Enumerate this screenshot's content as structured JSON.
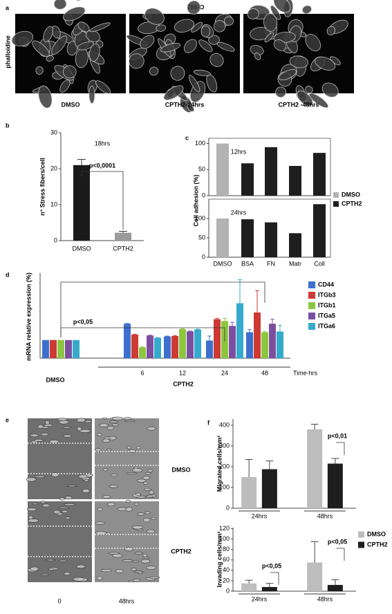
{
  "panel_a": {
    "letter": "a",
    "title": "786-O",
    "stain": "phalloidine",
    "images": [
      "DMSO",
      "CPTH2-24hrs",
      "CPTH2 -48hrs"
    ]
  },
  "panel_e": {
    "letter": "e",
    "rows": [
      "DMSO",
      "CPTH2"
    ],
    "columns": [
      "0",
      "48hrs"
    ]
  },
  "chart_data": [
    {
      "panel": "b",
      "type": "bar",
      "title": "18hrs",
      "ylabel": "n° Stress fibers/cell",
      "categories": [
        "DMSO",
        "CPTH2"
      ],
      "values": [
        21,
        2.2
      ],
      "errors": [
        1.6,
        0.4
      ],
      "colors": [
        "#1a1a1a",
        "#9a9a9a"
      ],
      "ylim": [
        0,
        30
      ],
      "yticks": [
        0,
        10,
        20,
        30
      ],
      "annotation": "p<0,0001"
    },
    {
      "panel": "c",
      "type": "bar",
      "ylabel": "Cell adhesion (%)",
      "categories": [
        "DMSO",
        "BSA",
        "FN",
        "Matr",
        "Coll"
      ],
      "series": [
        {
          "name": "DMSO",
          "color": "#b3b3b3"
        },
        {
          "name": "CPTH2",
          "color": "#1e1e1e"
        }
      ],
      "panels": [
        {
          "title": "12hrs",
          "ylim": [
            0,
            110
          ],
          "yticks": [
            0,
            50,
            100
          ],
          "values": [
            [
              100,
              null,
              null,
              null,
              null
            ],
            [
              null,
              62,
              93,
              57,
              82
            ]
          ]
        },
        {
          "title": "24hrs",
          "ylim": [
            0,
            150
          ],
          "yticks": [
            0,
            50,
            100
          ],
          "values": [
            [
              100,
              null,
              null,
              null,
              null
            ],
            [
              null,
              98,
              90,
              62,
              137
            ]
          ]
        }
      ]
    },
    {
      "panel": "d",
      "type": "grouped_bar",
      "ylabel": "mRNA relative expression (%)",
      "categories": [
        "DMSO",
        "6",
        "12",
        "24",
        "48"
      ],
      "group_label": "CPTH2",
      "x_unit": "Time-hrs",
      "ylim": [
        0,
        450
      ],
      "annotation": "p<0,05",
      "series": [
        {
          "name": "CD44",
          "color": "#3d6fce",
          "values": [
            100,
            190,
            120,
            97,
            143
          ],
          "errors": [
            null,
            2,
            2,
            25,
            15
          ]
        },
        {
          "name": "ITGb3",
          "color": "#cc3a33",
          "values": [
            100,
            130,
            122,
            215,
            252
          ],
          "errors": [
            null,
            2,
            2,
            5,
            120
          ]
        },
        {
          "name": "ITGb1",
          "color": "#8cc63f",
          "values": [
            100,
            60,
            160,
            205,
            143
          ],
          "errors": [
            null,
            2,
            2,
            15,
            5
          ]
        },
        {
          "name": "ITGa5",
          "color": "#7b4fa0",
          "values": [
            100,
            125,
            148,
            178,
            190
          ],
          "errors": [
            null,
            2,
            2,
            20,
            25
          ]
        },
        {
          "name": "ITGa6",
          "color": "#35aacc",
          "values": [
            100,
            112,
            158,
            303,
            147
          ],
          "errors": [
            null,
            2,
            2,
            130,
            35
          ]
        }
      ]
    },
    {
      "panel": "f",
      "type": "bar",
      "categories": [
        "24hrs",
        "48hrs"
      ],
      "series": [
        {
          "name": "DMSO",
          "color": "#bdbdbd"
        },
        {
          "name": "CPTH2",
          "color": "#1e1e1e"
        }
      ],
      "panels": [
        {
          "ylabel": "Migrated cells/mm²",
          "ylim": [
            0,
            430
          ],
          "yticks": [
            0,
            100,
            200,
            300,
            400
          ],
          "values": [
            [
              150,
              380
            ],
            [
              188,
              215
            ]
          ],
          "errors": [
            [
              85,
              25
            ],
            [
              40,
              25
            ]
          ],
          "annotations": [
            "p<0,01"
          ]
        },
        {
          "ylabel": "Invading cells/mm²",
          "ylim": [
            0,
            122
          ],
          "yticks": [
            0,
            20,
            40,
            60,
            80,
            100,
            120
          ],
          "values": [
            [
              15,
              55
            ],
            [
              8,
              12
            ]
          ],
          "errors": [
            [
              6,
              40
            ],
            [
              7,
              10
            ]
          ],
          "annotations": [
            "p<0,05",
            "p<0,05"
          ]
        }
      ]
    }
  ]
}
